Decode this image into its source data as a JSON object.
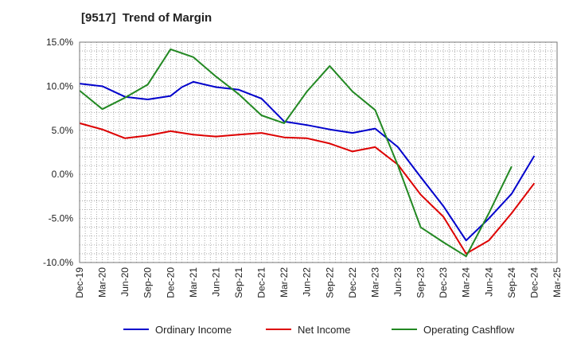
{
  "chart_data": {
    "type": "line",
    "title": "[9517]  Trend of Margin",
    "xlabel": "",
    "ylabel": "",
    "categories": [
      "Dec-19",
      "Mar-20",
      "Jun-20",
      "Sep-20",
      "Dec-20",
      "Mar-21",
      "Jun-21",
      "Sep-21",
      "Dec-21",
      "Mar-22",
      "Jun-22",
      "Sep-22",
      "Dec-22",
      "Mar-23",
      "Jun-23",
      "Sep-23",
      "Dec-23",
      "Mar-24",
      "Jun-24",
      "Sep-24",
      "Dec-24",
      "Mar-25"
    ],
    "x_tick_labels": [
      "Dec-19",
      "Mar-20",
      "Jun-20",
      "Sep-20",
      "Dec-20",
      "Mar-21",
      "Jun-21",
      "Sep-21",
      "Dec-21",
      "Mar-22",
      "Jun-22",
      "Sep-22",
      "Dec-22",
      "Mar-23",
      "Jun-23",
      "Sep-23",
      "Dec-23",
      "Mar-24",
      "Jun-24",
      "Sep-24",
      "Dec-24",
      "Mar-25"
    ],
    "x_values": [
      0,
      1,
      2,
      3,
      4,
      5,
      6,
      7,
      8,
      9,
      10,
      11,
      12,
      13,
      14,
      15,
      16,
      17,
      18,
      19,
      20,
      21
    ],
    "ylim": [
      -10,
      15
    ],
    "y_ticks": [
      15,
      10,
      5,
      0,
      -5,
      -10
    ],
    "y_tick_labels": [
      "15.0%",
      "10.0%",
      "5.0%",
      "0.0%",
      "-5.0%",
      "-10.0%"
    ],
    "grid": true,
    "legend_position": "bottom",
    "series": [
      {
        "name": "Ordinary Income",
        "color": "#0000cc",
        "x": [
          0,
          1,
          2,
          3,
          4,
          4.5,
          5,
          6,
          7,
          8,
          9,
          10,
          11,
          12,
          13,
          14,
          15,
          16,
          17,
          18,
          19,
          20
        ],
        "values": [
          10.3,
          10.0,
          8.8,
          8.5,
          8.9,
          9.9,
          10.5,
          9.9,
          9.6,
          8.6,
          6.0,
          5.6,
          5.1,
          4.7,
          5.2,
          3.1,
          -0.3,
          -3.6,
          -7.5,
          -5.0,
          -2.2,
          2.1
        ]
      },
      {
        "name": "Net Income",
        "color": "#dd0000",
        "x": [
          0,
          1,
          2,
          3,
          4,
          5,
          6,
          7,
          8,
          9,
          10,
          11,
          12,
          13,
          14,
          15,
          16,
          17,
          18,
          19,
          20
        ],
        "values": [
          5.8,
          5.1,
          4.1,
          4.4,
          4.9,
          4.5,
          4.3,
          4.5,
          4.7,
          4.2,
          4.1,
          3.5,
          2.6,
          3.1,
          1.1,
          -2.3,
          -4.8,
          -9.0,
          -7.5,
          -4.4,
          -1.0
        ]
      },
      {
        "name": "Operating Cashflow",
        "color": "#228822",
        "x": [
          0,
          1,
          2,
          3,
          4,
          5,
          6,
          7,
          8,
          9,
          10,
          11,
          12,
          13,
          14,
          15,
          16,
          17,
          18,
          19
        ],
        "values": [
          9.5,
          7.4,
          8.7,
          10.2,
          14.2,
          13.3,
          11.1,
          9.1,
          6.7,
          5.8,
          9.4,
          12.3,
          9.4,
          7.3,
          1.0,
          -6.0,
          -7.7,
          -9.3,
          -4.4,
          0.9
        ]
      }
    ]
  }
}
